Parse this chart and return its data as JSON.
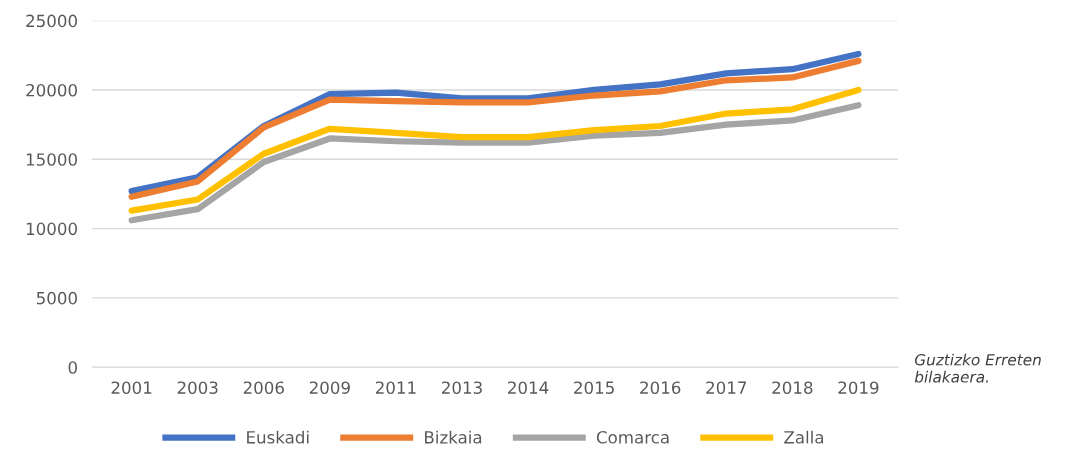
{
  "chart_data": {
    "type": "line",
    "categories": [
      "2001",
      "2003",
      "2006",
      "2009",
      "2011",
      "2013",
      "2014",
      "2015",
      "2016",
      "2017",
      "2018",
      "2019"
    ],
    "series": [
      {
        "name": "Euskadi",
        "color": "#4472c4",
        "values": [
          12700,
          13700,
          17400,
          19700,
          19800,
          19400,
          19400,
          20000,
          20400,
          21200,
          21500,
          22600
        ]
      },
      {
        "name": "Bizkaia",
        "color": "#ed7d31",
        "values": [
          12300,
          13400,
          17300,
          19300,
          19200,
          19100,
          19100,
          19600,
          19900,
          20700,
          20900,
          22100
        ]
      },
      {
        "name": "Comarca",
        "color": "#a5a5a5",
        "values": [
          10600,
          11400,
          14800,
          16500,
          16300,
          16200,
          16200,
          16700,
          16900,
          17500,
          17800,
          18900
        ]
      },
      {
        "name": "Zalla",
        "color": "#ffc000",
        "values": [
          11300,
          12100,
          15400,
          17200,
          16900,
          16600,
          16600,
          17100,
          17400,
          18300,
          18600,
          20000
        ]
      }
    ],
    "ylim": [
      0,
      25000
    ],
    "yticks": [
      0,
      5000,
      10000,
      15000,
      20000,
      25000
    ],
    "grid": "y",
    "legend": "bottom",
    "marker": "none",
    "line_style": "solid",
    "annotations": [
      "Guztizko Erreten bilakaera."
    ]
  }
}
